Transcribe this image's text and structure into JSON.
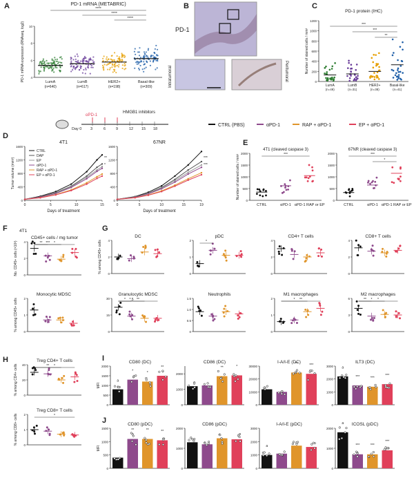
{
  "panel_letters": [
    "A",
    "B",
    "C",
    "D",
    "E",
    "F",
    "G",
    "H",
    "I",
    "J"
  ],
  "colors": {
    "ctrl": "#111111",
    "apd1": "#8e4a8c",
    "rap": "#e0952b",
    "ep": "#e0405a",
    "gray": "#777777"
  },
  "legend": {
    "items": [
      "CTRL (PBS)",
      "αPD-1",
      "RAP + αPD-1",
      "EP + αPD-1"
    ]
  },
  "schedule": {
    "start": "Day 0",
    "days": [
      "3",
      "6",
      "9",
      "12",
      "15",
      "18"
    ],
    "label_apd1": "αPD-1",
    "label_hmgb1": "HMGB1 inhibitors"
  },
  "panel_b": {
    "label": "PD-1",
    "sub_left": "Intratumoral",
    "sub_right": "Peritumoral"
  },
  "chart_data": [
    {
      "id": "A",
      "type": "scatter",
      "title": "PD-1 mRNA (METABRIC)",
      "ylabel": "PD-1 mRNA expression (RNAseq, log2)",
      "ylim": [
        4,
        10
      ],
      "yticks": [
        4,
        6,
        8,
        10
      ],
      "categories": [
        "LumA",
        "LumB",
        "HER2+",
        "Basal-like"
      ],
      "counts": [
        "(n=640)",
        "(n=617)",
        "(n=198)",
        "(n=309)"
      ],
      "medians": [
        5.4,
        5.6,
        5.8,
        6.2
      ],
      "spread": [
        0.5,
        0.55,
        0.6,
        0.8
      ],
      "sig": [
        "****",
        "****",
        "****"
      ]
    },
    {
      "id": "C",
      "type": "scatter",
      "title": "PD-1 protein (IHC)",
      "ylabel": "Number of stained cells / mm²",
      "ylim": [
        0,
        1200
      ],
      "yticks": [
        0,
        200,
        400,
        600,
        800,
        1000,
        1200
      ],
      "categories": [
        "LumA",
        "LumB",
        "HER2+",
        "Basal-like"
      ],
      "counts": [
        "(n=49)",
        "(n=31)",
        "(n=38)",
        "(n=41)"
      ],
      "means": [
        130,
        150,
        200,
        330
      ],
      "sig": [
        "***",
        "***",
        "**"
      ]
    },
    {
      "id": "D1",
      "type": "line",
      "title": "4T1",
      "xlabel": "Days of treatment",
      "ylabel": "Tumor volume (mm³)",
      "ylim": [
        0,
        1600
      ],
      "yticks": [
        0,
        400,
        800,
        1200,
        1600
      ],
      "xlim": [
        0,
        15
      ],
      "xticks": [
        0,
        5,
        10,
        15
      ],
      "series": [
        {
          "name": "CTRL",
          "values": [
            [
              0,
              30
            ],
            [
              3,
              120
            ],
            [
              6,
              260
            ],
            [
              9,
              480
            ],
            [
              12,
              850
            ],
            [
              14,
              1200
            ],
            [
              15,
              1350
            ]
          ]
        },
        {
          "name": "DAP",
          "values": [
            [
              0,
              30
            ],
            [
              3,
              100
            ],
            [
              6,
              230
            ],
            [
              9,
              420
            ],
            [
              12,
              720
            ],
            [
              14,
              980
            ],
            [
              15,
              1080
            ]
          ]
        },
        {
          "name": "EP",
          "values": [
            [
              0,
              30
            ],
            [
              3,
              100
            ],
            [
              6,
              210
            ],
            [
              9,
              400
            ],
            [
              12,
              680
            ],
            [
              14,
              900
            ],
            [
              15,
              1000
            ]
          ]
        },
        {
          "name": "αPD-1",
          "values": [
            [
              0,
              30
            ],
            [
              3,
              95
            ],
            [
              6,
              200
            ],
            [
              9,
              380
            ],
            [
              12,
              640
            ],
            [
              14,
              860
            ],
            [
              15,
              950
            ]
          ]
        },
        {
          "name": "RAP + αPD-1",
          "values": [
            [
              0,
              30
            ],
            [
              3,
              80
            ],
            [
              6,
              170
            ],
            [
              9,
              310
            ],
            [
              12,
              520
            ],
            [
              14,
              700
            ],
            [
              15,
              780
            ]
          ]
        },
        {
          "name": "EP + αPD-1",
          "values": [
            [
              0,
              30
            ],
            [
              3,
              75
            ],
            [
              6,
              160
            ],
            [
              9,
              290
            ],
            [
              12,
              480
            ],
            [
              14,
              650
            ],
            [
              15,
              720
            ]
          ]
        }
      ],
      "sig": [
        "**",
        "*"
      ]
    },
    {
      "id": "D2",
      "type": "line",
      "title": "67NR",
      "xlabel": "Days of treatment",
      "ylim": [
        0,
        1600
      ],
      "yticks": [
        0,
        400,
        800,
        1200,
        1600
      ],
      "xlim": [
        0,
        19
      ],
      "xticks": [
        0,
        5,
        10,
        15,
        19
      ],
      "series": [
        {
          "name": "CTRL",
          "values": [
            [
              0,
              30
            ],
            [
              4,
              110
            ],
            [
              7,
              240
            ],
            [
              10,
              430
            ],
            [
              13,
              720
            ],
            [
              16,
              1050
            ],
            [
              19,
              1450
            ]
          ]
        },
        {
          "name": "DAP",
          "values": [
            [
              0,
              30
            ],
            [
              4,
              100
            ],
            [
              7,
              210
            ],
            [
              10,
              380
            ],
            [
              13,
              620
            ],
            [
              16,
              900
            ],
            [
              19,
              1150
            ]
          ]
        },
        {
          "name": "EP",
          "values": [
            [
              0,
              30
            ],
            [
              4,
              95
            ],
            [
              7,
              200
            ],
            [
              10,
              360
            ],
            [
              13,
              580
            ],
            [
              16,
              830
            ],
            [
              19,
              1050
            ]
          ]
        },
        {
          "name": "αPD-1",
          "values": [
            [
              0,
              30
            ],
            [
              4,
              90
            ],
            [
              7,
              190
            ],
            [
              10,
              340
            ],
            [
              13,
              540
            ],
            [
              16,
              780
            ],
            [
              19,
              980
            ]
          ]
        },
        {
          "name": "RAP + αPD-1",
          "values": [
            [
              0,
              30
            ],
            [
              4,
              80
            ],
            [
              7,
              160
            ],
            [
              10,
              280
            ],
            [
              13,
              450
            ],
            [
              16,
              640
            ],
            [
              19,
              820
            ]
          ]
        },
        {
          "name": "EP + αPD-1",
          "values": [
            [
              0,
              30
            ],
            [
              4,
              75
            ],
            [
              7,
              150
            ],
            [
              10,
              260
            ],
            [
              13,
              420
            ],
            [
              16,
              600
            ],
            [
              19,
              760
            ]
          ]
        }
      ],
      "sig": [
        "***",
        "***"
      ]
    },
    {
      "id": "E1",
      "type": "scatter",
      "title": "4T1 (cleaved caspase 3)",
      "ylabel": "Number of stained cells / mm²",
      "ylim": [
        0,
        2000
      ],
      "yticks": [
        0,
        500,
        1000,
        1500,
        2000
      ],
      "categories": [
        "CTRL",
        "αPD-1",
        "αPD-1 RAP or EP"
      ],
      "means": [
        350,
        620,
        1050
      ],
      "sig": [
        "***"
      ]
    },
    {
      "id": "E2",
      "type": "scatter",
      "title": "67NR (cleaved caspase 3)",
      "ylim": [
        0,
        2000
      ],
      "yticks": [
        0,
        500,
        1000,
        1500,
        2000
      ],
      "categories": [
        "CTRL",
        "αPD-1",
        "αPD-1 RAP or EP"
      ],
      "means": [
        330,
        650,
        1150
      ],
      "sig": [
        "***",
        "*"
      ]
    }
  ],
  "panel_f": {
    "title": "4T1",
    "subtitle": "CD45+ cells / mg tumor",
    "ylabel": "No. CD45+ cells (×10³)",
    "yticks": [
      "0",
      "2",
      "4"
    ],
    "ymax": 4,
    "means": [
      3.2,
      2.3,
      1.9,
      2.7
    ],
    "sig": [
      "**",
      "***",
      "*"
    ]
  },
  "panel_g": [
    {
      "title": "DC",
      "ylabel": "% among CD45+ cells",
      "means": [
        2.0,
        1.8,
        2.6,
        2.4
      ],
      "ymax": 4,
      "yticks": [
        "0",
        "2",
        "4"
      ],
      "sig": [
        "",
        "",
        ""
      ]
    },
    {
      "title": "pDC",
      "means": [
        0.6,
        1.4,
        1.1,
        1.1
      ],
      "ymax": 2,
      "yticks": [
        "0",
        "1",
        "2"
      ],
      "sig": [
        "*",
        "",
        ""
      ]
    },
    {
      "title": "CD4+ T cells",
      "means": [
        3.0,
        2.3,
        2.0,
        2.5
      ],
      "ymax": 4,
      "yticks": [
        "0",
        "2",
        "4"
      ],
      "sig": [
        "",
        "",
        ""
      ]
    },
    {
      "title": "CD8+ T cells",
      "means": [
        3.1,
        2.7,
        2.5,
        2.8
      ],
      "ymax": 4,
      "yticks": [
        "0",
        "2",
        "4"
      ],
      "sig": [
        "",
        "",
        ""
      ]
    },
    {
      "title": "Monocytic MDSC",
      "ylabel": "% among CD45+ cells",
      "means": [
        1.3,
        0.7,
        0.7,
        0.5
      ],
      "ymax": 2,
      "yticks": [
        "0",
        "1",
        "2"
      ],
      "sig": [
        "",
        "",
        ""
      ]
    },
    {
      "title": "Granulocytic MDSC",
      "means": [
        22,
        14,
        12,
        12
      ],
      "ymax": 30,
      "yticks": [
        "0",
        "15",
        "30"
      ],
      "sig": [
        "*",
        "*.5",
        "**"
      ]
    },
    {
      "title": "Neutrophils",
      "means": [
        0.9,
        0.7,
        0.9,
        0.8
      ],
      "ymax": 1.5,
      "yticks": [
        "0",
        "0.5",
        "1.0",
        "1.5"
      ],
      "sig": [
        "",
        "",
        ""
      ]
    },
    {
      "title": "M1 macrophages",
      "means": [
        0.6,
        0.7,
        1.2,
        1.4
      ],
      "ymax": 2,
      "yticks": [
        "0",
        "1",
        "2"
      ],
      "sig": [
        "",
        "*",
        "**"
      ]
    },
    {
      "title": "M2 macrophages",
      "means": [
        4.2,
        2.8,
        3.1,
        3.0
      ],
      "ymax": 6,
      "yticks": [
        "0",
        "3",
        "6"
      ],
      "sig": [
        "**",
        "*",
        "*"
      ]
    }
  ],
  "panel_h": [
    {
      "title": "Treg CD4+ T cells",
      "ylabel": "% among CD4+ cells",
      "means": [
        30,
        28,
        20,
        24
      ],
      "ymax": 40,
      "yticks": [
        "0",
        "20",
        "40"
      ],
      "sig": [
        "",
        "**",
        "*"
      ]
    },
    {
      "title": "Treg CD8+ T cells",
      "ylabel": "% among CD8+ cells",
      "means": [
        1.0,
        0.9,
        0.7,
        0.65
      ],
      "ymax": 2,
      "yticks": [
        "0",
        "1",
        "2"
      ],
      "sig": [
        "",
        "",
        "*"
      ]
    }
  ],
  "panel_i": [
    {
      "title": "CD80 (DC)",
      "ylabel": "MFI",
      "values": [
        800,
        1300,
        1200,
        1500
      ],
      "ymax": 2000,
      "yticks": [
        "0",
        "500",
        "1000",
        "1500",
        "2000"
      ],
      "sig": [
        "a",
        "*",
        "*",
        "**"
      ]
    },
    {
      "title": "CD86 (DC)",
      "values": [
        1200,
        1250,
        1850,
        1900
      ],
      "ymax": 2500,
      "yticks": [
        "0",
        "1000",
        "2000"
      ],
      "sig": [
        "",
        "",
        "**",
        "*"
      ]
    },
    {
      "title": "I-A/I-E (DC)",
      "values": [
        12000,
        10000,
        25000,
        24000
      ],
      "ymax": 30000,
      "yticks": [
        "0",
        "10000",
        "20000",
        "30000"
      ],
      "sig": [
        "",
        "",
        "**",
        "***"
      ]
    },
    {
      "title": "ILT3 (DC)",
      "values": [
        2200,
        1500,
        1400,
        1600
      ],
      "ymax": 3000,
      "yticks": [
        "0",
        "1000",
        "2000",
        "3000"
      ],
      "sig": [
        "a",
        "***",
        "***",
        "***"
      ]
    }
  ],
  "panel_j": [
    {
      "title": "CD80 (pDC)",
      "ylabel": "MFI",
      "values": [
        400,
        1100,
        1100,
        1050
      ],
      "ymax": 1500,
      "yticks": [
        "0",
        "500",
        "1000",
        "1500"
      ],
      "sig": [
        "",
        "**",
        "**",
        "**"
      ]
    },
    {
      "title": "CD86 (pDC)",
      "values": [
        1300,
        1200,
        1500,
        1450
      ],
      "ymax": 2000,
      "yticks": [
        "0",
        "1000",
        "2000"
      ],
      "sig": [
        "",
        "",
        "",
        ""
      ]
    },
    {
      "title": "I-A/I-E (pDC)",
      "values": [
        1000,
        1100,
        1700,
        1600
      ],
      "ymax": 3000,
      "yticks": [
        "0",
        "1000",
        "2000",
        "3000"
      ],
      "sig": [
        "a",
        "",
        "",
        ""
      ]
    },
    {
      "title": "ICOSL (pDC)",
      "values": [
        1800,
        700,
        700,
        900
      ],
      "ymax": 2000,
      "yticks": [
        "0",
        "1000",
        "2000"
      ],
      "sig": [
        "a",
        "***",
        "***",
        "***"
      ]
    }
  ]
}
